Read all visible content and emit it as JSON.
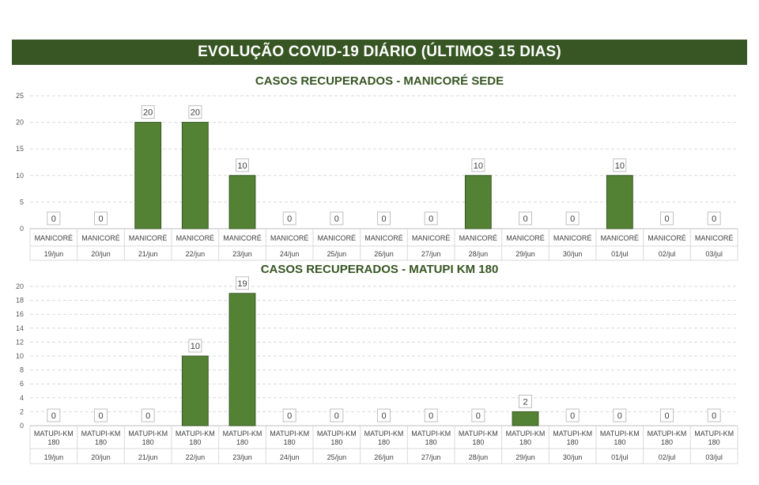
{
  "header": {
    "title": "EVOLUÇÃO COVID-19 DIÁRIO (ÚLTIMOS 15 DIAS)"
  },
  "colors": {
    "banner": "#375623",
    "bar": "#548235",
    "bar_border": "#375623",
    "title": "#375623"
  },
  "chart_data": [
    {
      "type": "bar",
      "title": "CASOS RECUPERADOS - MANICORÉ SEDE",
      "categories": [
        "19/jun",
        "20/jun",
        "21/jun",
        "22/jun",
        "23/jun",
        "24/jun",
        "25/jun",
        "26/jun",
        "27/jun",
        "28/jun",
        "29/jun",
        "30/jun",
        "01/jul",
        "02/jul",
        "03/jul"
      ],
      "category_group_label": [
        "MANICORÉ"
      ],
      "values": [
        0,
        0,
        20,
        20,
        10,
        0,
        0,
        0,
        0,
        10,
        0,
        0,
        10,
        0,
        0
      ],
      "ylim": [
        0,
        25
      ],
      "yticks": [
        0,
        5,
        10,
        15,
        20,
        25
      ],
      "grid": true,
      "data_labels": true
    },
    {
      "type": "bar",
      "title": "CASOS RECUPERADOS - MATUPI KM 180",
      "categories": [
        "19/jun",
        "20/jun",
        "21/jun",
        "22/jun",
        "23/jun",
        "24/jun",
        "25/jun",
        "26/jun",
        "27/jun",
        "28/jun",
        "29/jun",
        "30/jun",
        "01/jul",
        "02/jul",
        "03/jul"
      ],
      "category_group_label": [
        "MATUPI-KM",
        "180"
      ],
      "values": [
        0,
        0,
        0,
        10,
        19,
        0,
        0,
        0,
        0,
        0,
        2,
        0,
        0,
        0,
        0
      ],
      "ylim": [
        0,
        20
      ],
      "yticks": [
        0,
        2,
        4,
        6,
        8,
        10,
        12,
        14,
        16,
        18,
        20
      ],
      "grid": true,
      "data_labels": true
    }
  ]
}
